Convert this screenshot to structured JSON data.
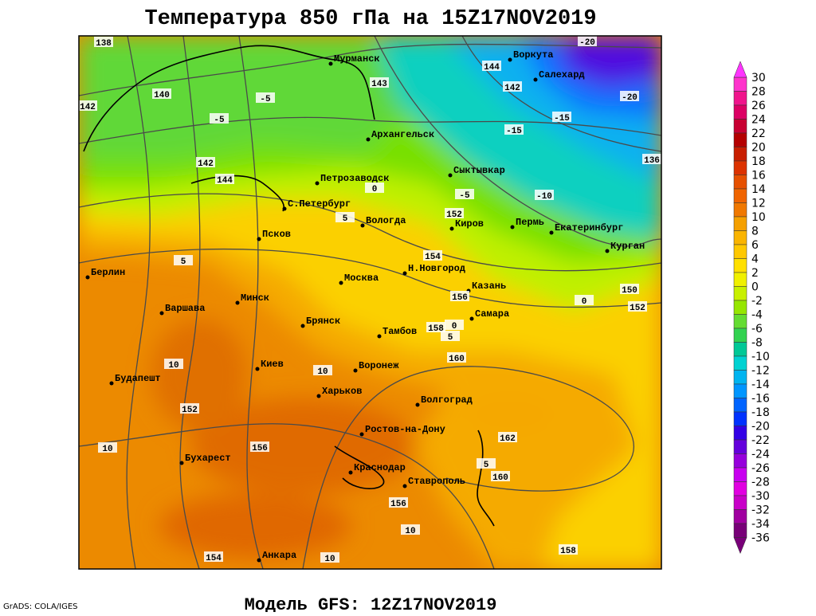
{
  "title": "Температура 850 гПа на 15Z17NOV2019",
  "footer": "Модель GFS: 12Z17NOV2019",
  "credit": "GrADS: COLA/IGES",
  "cities": [
    "Мурманск",
    "Воркута",
    "Салехард",
    "Архангельск",
    "Петрозаводск",
    "Сыктывкар",
    "С.Петербург",
    "Вологда",
    "Киров",
    "Пермь",
    "Екатеринбург",
    "Курган",
    "Псков",
    "Н.Новгород",
    "Москва",
    "Казань",
    "Берлин",
    "Варшава",
    "Минск",
    "Самара",
    "Брянск",
    "Тамбов",
    "Воронеж",
    "Киев",
    "Харьков",
    "Будапешт",
    "Волгоград",
    "Ростов-на-Дону",
    "Бухарест",
    "Краснодар",
    "Ставрополь",
    "Анкара"
  ],
  "contour_labels": [
    138,
    140,
    142,
    142,
    144,
    143,
    144,
    142,
    152,
    154,
    156,
    158,
    160,
    162,
    160,
    156,
    156,
    152,
    154,
    150,
    152,
    136,
    158,
    -20,
    -20,
    -15,
    -15,
    -10,
    -5,
    -5,
    -5,
    0,
    5,
    5,
    10,
    10,
    10,
    10,
    10,
    5,
    0,
    0,
    5
  ],
  "colorbar": {
    "levels": [
      30,
      28,
      26,
      24,
      22,
      20,
      18,
      16,
      14,
      12,
      10,
      8,
      6,
      4,
      2,
      0,
      -2,
      -4,
      -6,
      -8,
      -10,
      -12,
      -14,
      -16,
      -18,
      -20,
      -22,
      -24,
      -26,
      -28,
      -30,
      -32,
      -34,
      -36
    ],
    "colors": [
      "#ff33cc",
      "#f0148c",
      "#dc0064",
      "#c80032",
      "#b40000",
      "#c81e00",
      "#dc3200",
      "#e65000",
      "#f06400",
      "#f07800",
      "#f5a000",
      "#fab400",
      "#ffc800",
      "#ffe000",
      "#f0f000",
      "#c8f000",
      "#96e600",
      "#64dc32",
      "#32d250",
      "#00c896",
      "#00d2d2",
      "#00b4f0",
      "#0096ff",
      "#0064ff",
      "#0032ff",
      "#3200e6",
      "#6400dc",
      "#9600dc",
      "#c800f0",
      "#e100e1",
      "#c800c8",
      "#a000a0",
      "#780078"
    ]
  }
}
